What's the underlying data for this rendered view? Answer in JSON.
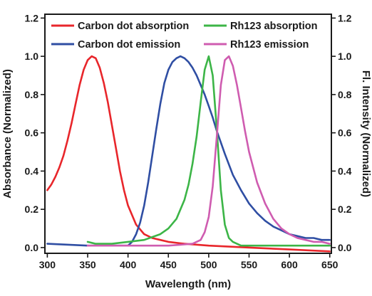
{
  "chart_data": {
    "type": "line",
    "xlabel": "Wavelength (nm)",
    "ylabel_left": "Absorbance (Normalized)",
    "ylabel_right": "Fl. Intensity (Normalized)",
    "xlim": [
      297,
      652
    ],
    "ylim": [
      -0.03,
      1.22
    ],
    "x_ticks": [
      300,
      350,
      400,
      450,
      500,
      550,
      600,
      650
    ],
    "y_ticks": [
      0.0,
      0.2,
      0.4,
      0.6,
      0.8,
      1.0,
      1.2
    ],
    "x_tick_labels": [
      "300",
      "350",
      "400",
      "450",
      "500",
      "550",
      "600",
      "650"
    ],
    "y_tick_labels": [
      "0.0",
      "0.2",
      "0.4",
      "0.6",
      "0.8",
      "1.0",
      "1.2"
    ],
    "grid": false,
    "legend": "top, two columns",
    "series": [
      {
        "name": "Carbon dot absorption",
        "color": "#e8262b",
        "x": [
          300,
          305,
          310,
          315,
          320,
          325,
          330,
          335,
          340,
          345,
          350,
          355,
          360,
          365,
          370,
          375,
          380,
          385,
          390,
          395,
          400,
          410,
          420,
          430,
          440,
          450,
          470,
          500,
          550,
          600,
          650
        ],
        "y": [
          0.3,
          0.33,
          0.37,
          0.42,
          0.48,
          0.56,
          0.65,
          0.75,
          0.85,
          0.93,
          0.98,
          1.0,
          0.99,
          0.94,
          0.86,
          0.76,
          0.64,
          0.52,
          0.4,
          0.3,
          0.22,
          0.12,
          0.07,
          0.05,
          0.04,
          0.03,
          0.02,
          0.01,
          0.0,
          -0.01,
          -0.02
        ]
      },
      {
        "name": "Carbon dot emission",
        "color": "#2f4ea3",
        "x": [
          300,
          350,
          400,
          405,
          410,
          415,
          420,
          425,
          430,
          435,
          440,
          445,
          450,
          455,
          460,
          465,
          470,
          475,
          480,
          485,
          490,
          495,
          500,
          505,
          510,
          520,
          530,
          540,
          550,
          560,
          570,
          580,
          590,
          600,
          610,
          620,
          630,
          640,
          650
        ],
        "y": [
          0.02,
          0.01,
          0.01,
          0.03,
          0.07,
          0.13,
          0.22,
          0.34,
          0.48,
          0.62,
          0.75,
          0.86,
          0.93,
          0.97,
          0.99,
          1.0,
          0.99,
          0.97,
          0.94,
          0.9,
          0.85,
          0.8,
          0.74,
          0.68,
          0.61,
          0.49,
          0.38,
          0.3,
          0.23,
          0.18,
          0.14,
          0.11,
          0.09,
          0.07,
          0.06,
          0.05,
          0.05,
          0.04,
          0.04
        ]
      },
      {
        "name": "Rh123 absorption",
        "color": "#3cb547",
        "x": [
          350,
          360,
          380,
          400,
          420,
          440,
          450,
          460,
          470,
          475,
          480,
          485,
          490,
          495,
          500,
          505,
          510,
          515,
          520,
          525,
          530,
          540,
          550,
          600,
          650
        ],
        "y": [
          0.03,
          0.02,
          0.02,
          0.03,
          0.04,
          0.07,
          0.1,
          0.15,
          0.25,
          0.33,
          0.44,
          0.58,
          0.76,
          0.93,
          1.0,
          0.9,
          0.62,
          0.3,
          0.12,
          0.05,
          0.03,
          0.01,
          0.01,
          0.01,
          0.01
        ]
      },
      {
        "name": "Rh123 emission",
        "color": "#cf5cb0",
        "x": [
          350,
          400,
          450,
          480,
          490,
          495,
          500,
          505,
          510,
          515,
          520,
          525,
          530,
          535,
          540,
          545,
          550,
          560,
          570,
          580,
          590,
          600,
          610,
          620,
          630,
          640,
          650
        ],
        "y": [
          0.01,
          0.01,
          0.01,
          0.02,
          0.04,
          0.08,
          0.16,
          0.32,
          0.58,
          0.85,
          0.98,
          1.0,
          0.95,
          0.85,
          0.73,
          0.61,
          0.5,
          0.34,
          0.23,
          0.15,
          0.1,
          0.07,
          0.05,
          0.04,
          0.03,
          0.03,
          0.02
        ]
      }
    ]
  }
}
